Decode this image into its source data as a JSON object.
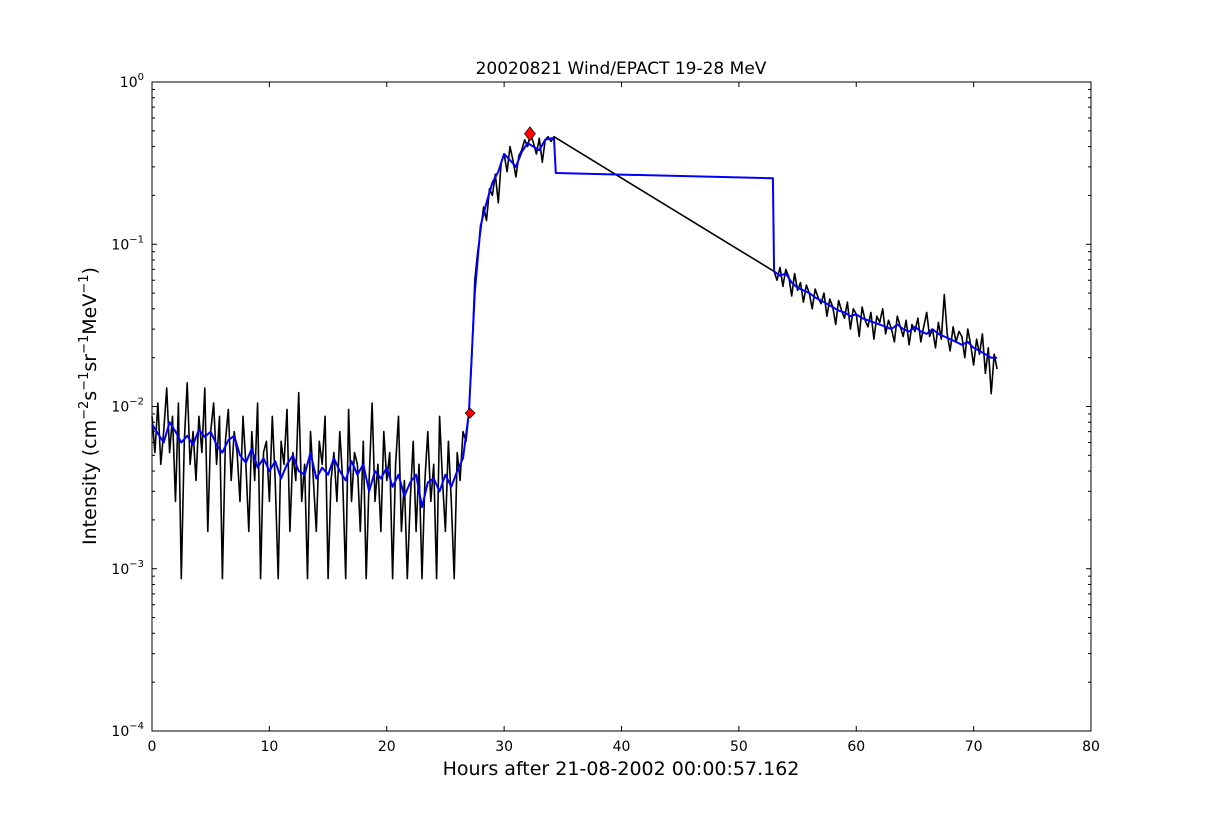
{
  "chart_data": {
    "type": "line",
    "title": "20020821 Wind/EPACT 19-28 MeV",
    "xlabel": "Hours after 21-08-2002 00:00:57.162",
    "ylabel_parts": {
      "pre": "Intensity (cm",
      "e1": "−2",
      "s": "s",
      "e2": "−1",
      "sr": "sr",
      "e3": "−1",
      "mev": "MeV",
      "e4": "−1",
      "post": ")"
    },
    "xlim": [
      0,
      80
    ],
    "ylim": [
      0.0001,
      1
    ],
    "yscale": "log",
    "grid": false,
    "xticks": [
      "0",
      "10",
      "20",
      "30",
      "40",
      "50",
      "60",
      "70",
      "80"
    ],
    "yticks": [
      {
        "base": "10",
        "exp": "−4"
      },
      {
        "base": "10",
        "exp": "−3"
      },
      {
        "base": "10",
        "exp": "−2"
      },
      {
        "base": "10",
        "exp": "−1"
      },
      {
        "base": "10",
        "exp": "0"
      }
    ],
    "series": [
      {
        "name": "intensity",
        "color": "#000000",
        "segments": [
          {
            "x_start": 0,
            "step": 0.25,
            "values": [
              0.0087,
              0.0052,
              0.0105,
              0.0044,
              0.007,
              0.013,
              0.0052,
              0.0087,
              0.0026,
              0.0105,
              0.00087,
              0.0061,
              0.014,
              0.0044,
              0.007,
              0.0035,
              0.0087,
              0.0052,
              0.013,
              0.0017,
              0.007,
              0.0105,
              0.0044,
              0.0087,
              0.00087,
              0.0061,
              0.0096,
              0.0035,
              0.007,
              0.0052,
              0.0026,
              0.0087,
              0.0044,
              0.0017,
              0.007,
              0.0035,
              0.0105,
              0.00087,
              0.0052,
              0.0061,
              0.0026,
              0.0087,
              0.0035,
              0.00087,
              0.0061,
              0.0044,
              0.0096,
              0.0017,
              0.0052,
              0.0035,
              0.0122,
              0.0026,
              0.0044,
              0.00087,
              0.007,
              0.0035,
              0.0017,
              0.0061,
              0.0044,
              0.0087,
              0.00087,
              0.0035,
              0.0052,
              0.0026,
              0.007,
              0.0035,
              0.00087,
              0.0096,
              0.0026,
              0.0052,
              0.0044,
              0.0017,
              0.0061,
              0.00087,
              0.0035,
              0.0105,
              0.0026,
              0.0044,
              0.0017,
              0.007,
              0.0035,
              0.0052,
              0.00087,
              0.0044,
              0.0087,
              0.0017,
              0.0035,
              0.00087,
              0.0026,
              0.0061,
              0.0017,
              0.0044,
              0.00087,
              0.0035,
              0.007,
              0.0026,
              0.0044,
              0.00087,
              0.0087,
              0.0035,
              0.0017,
              0.0061,
              0.0026,
              0.00087,
              0.0052,
              0.0035,
              0.007,
              0.0061,
              0.0091,
              0.02,
              0.06,
              0.09,
              0.12,
              0.17,
              0.14,
              0.22,
              0.2,
              0.27,
              0.18,
              0.32,
              0.36,
              0.28,
              0.4,
              0.33,
              0.26,
              0.35,
              0.38,
              0.44,
              0.4,
              0.48,
              0.42,
              0.36,
              0.45,
              0.32,
              0.44,
              0.46,
              0.43,
              0.46
            ]
          },
          {
            "x_start": 53,
            "step": 0.25,
            "values": [
              0.068,
              0.06,
              0.072,
              0.055,
              0.07,
              0.063,
              0.048,
              0.066,
              0.052,
              0.058,
              0.044,
              0.056,
              0.05,
              0.04,
              0.053,
              0.047,
              0.043,
              0.05,
              0.036,
              0.046,
              0.041,
              0.032,
              0.045,
              0.039,
              0.035,
              0.044,
              0.03,
              0.04,
              0.037,
              0.027,
              0.041,
              0.034,
              0.031,
              0.038,
              0.026,
              0.036,
              0.033,
              0.04,
              0.028,
              0.034,
              0.03,
              0.025,
              0.036,
              0.031,
              0.027,
              0.034,
              0.024,
              0.032,
              0.029,
              0.035,
              0.025,
              0.031,
              0.038,
              0.027,
              0.03,
              0.023,
              0.033,
              0.026,
              0.049,
              0.028,
              0.022,
              0.031,
              0.025,
              0.029,
              0.027,
              0.02,
              0.03,
              0.024,
              0.018,
              0.026,
              0.021,
              0.028,
              0.016,
              0.023,
              0.012,
              0.021,
              0.017
            ]
          }
        ]
      },
      {
        "name": "smoothed",
        "color": "#0000ff",
        "segments": [
          {
            "x_start": 0,
            "step": 0.5,
            "values": [
              0.0078,
              0.0068,
              0.006,
              0.008,
              0.007,
              0.006,
              0.0066,
              0.0058,
              0.0072,
              0.0065,
              0.007,
              0.0058,
              0.0052,
              0.0062,
              0.0066,
              0.005,
              0.0045,
              0.0055,
              0.0042,
              0.0048,
              0.004,
              0.0046,
              0.0036,
              0.0044,
              0.005,
              0.004,
              0.0038,
              0.0052,
              0.0036,
              0.0042,
              0.0038,
              0.0048,
              0.004,
              0.0035,
              0.0046,
              0.0038,
              0.0044,
              0.003,
              0.004,
              0.0036,
              0.0042,
              0.0032,
              0.0038,
              0.0028,
              0.0034,
              0.0038,
              0.0024,
              0.0034,
              0.0036,
              0.003,
              0.0038,
              0.0032,
              0.004,
              0.0048,
              0.0091,
              0.05,
              0.13,
              0.18,
              0.24,
              0.28,
              0.36,
              0.33,
              0.3,
              0.37,
              0.42,
              0.4,
              0.38,
              0.44,
              0.45
            ]
          },
          {
            "points": [
              [
                34.25,
                0.45
              ],
              [
                34.4,
                0.275
              ],
              [
                52.9,
                0.255
              ],
              [
                53.0,
                0.068
              ]
            ]
          },
          {
            "x_start": 53,
            "step": 0.5,
            "values": [
              0.068,
              0.064,
              0.066,
              0.058,
              0.054,
              0.052,
              0.05,
              0.047,
              0.045,
              0.043,
              0.041,
              0.039,
              0.038,
              0.036,
              0.037,
              0.035,
              0.034,
              0.033,
              0.032,
              0.031,
              0.03,
              0.032,
              0.03,
              0.029,
              0.031,
              0.029,
              0.028,
              0.03,
              0.028,
              0.027,
              0.026,
              0.025,
              0.024,
              0.025,
              0.023,
              0.022,
              0.021,
              0.02,
              0.02
            ]
          }
        ]
      }
    ],
    "markers": [
      {
        "name": "onset",
        "x": 27.1,
        "y": 0.0091,
        "color": "#ff0000",
        "shape": "diamond"
      },
      {
        "name": "peak",
        "x": 32.2,
        "y": 0.48,
        "color": "#ff0000",
        "shape": "diamond"
      }
    ]
  }
}
